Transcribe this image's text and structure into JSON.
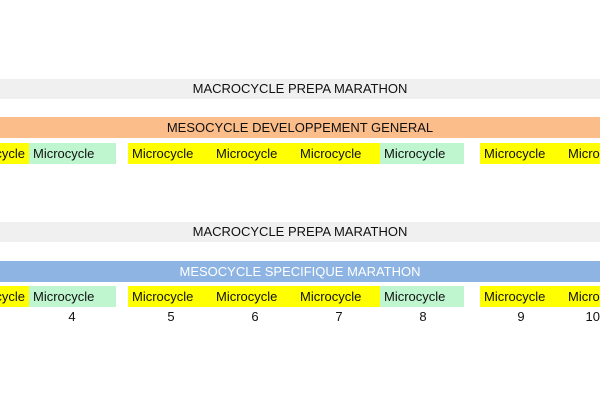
{
  "sections": [
    {
      "macro": "MACROCYCLE PREPA MARATHON",
      "meso": "MESOCYCLE DEVELOPPEMENT GENERAL",
      "meso_color": "#fbbd8a",
      "meso_text_color": "#111111"
    },
    {
      "macro": "MACROCYCLE PREPA MARATHON",
      "meso": "MESOCYCLE SPECIFIQUE MARATHON",
      "meso_color": "#8db4e2",
      "meso_text_color": "#ffffff"
    }
  ],
  "micro_label": "Microcycle",
  "colors": {
    "load_week": "#ffff00",
    "recovery_week": "#bff5cf",
    "macro_bar": "#f0f0f0"
  },
  "week_numbers": [
    "4",
    "5",
    "6",
    "7",
    "8",
    "9",
    "10"
  ]
}
